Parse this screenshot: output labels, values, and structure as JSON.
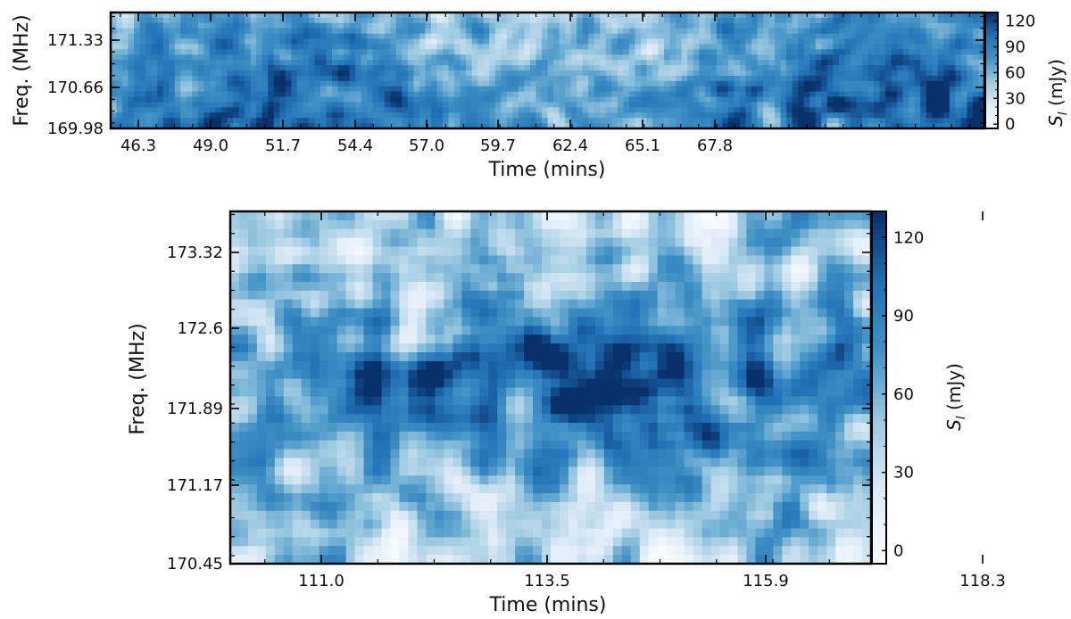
{
  "chart_data": [
    {
      "type": "heatmap",
      "xlabel": "Time (mins)",
      "ylabel": "Freq. (MHz)",
      "x_ticks": [
        "46.3",
        "49.0",
        "51.7",
        "54.4",
        "57.0",
        "59.7",
        "62.4",
        "65.1",
        "67.8"
      ],
      "y_ticks": [
        "171.33",
        "170.66",
        "169.98"
      ],
      "colorbar": {
        "label_main": "S",
        "label_sub": "I",
        "label_unit": " (mJy)",
        "ticks": [
          "120",
          "90",
          "60",
          "30",
          "0"
        ],
        "range": [
          -5,
          130
        ],
        "colormap": [
          "#f7fbff",
          "#deebf7",
          "#9ecae1",
          "#4292c6",
          "#2171b5",
          "#08306b"
        ]
      },
      "grid": false,
      "seed": 11
    },
    {
      "type": "heatmap",
      "xlabel": "Time (mins)",
      "ylabel": "Freq. (MHz)",
      "x_ticks": [
        "111.0",
        "113.5",
        "115.9",
        "118.3"
      ],
      "y_ticks": [
        "173.32",
        "172.6",
        "171.89",
        "171.17",
        "170.45"
      ],
      "colorbar": {
        "label_main": "S",
        "label_sub": "I",
        "label_unit": " (mJy)",
        "ticks": [
          "120",
          "90",
          "60",
          "30",
          "0"
        ],
        "range": [
          -5,
          130
        ],
        "colormap": [
          "#f7fbff",
          "#deebf7",
          "#9ecae1",
          "#4292c6",
          "#2171b5",
          "#08306b"
        ]
      },
      "grid": false,
      "seed": 29
    }
  ]
}
